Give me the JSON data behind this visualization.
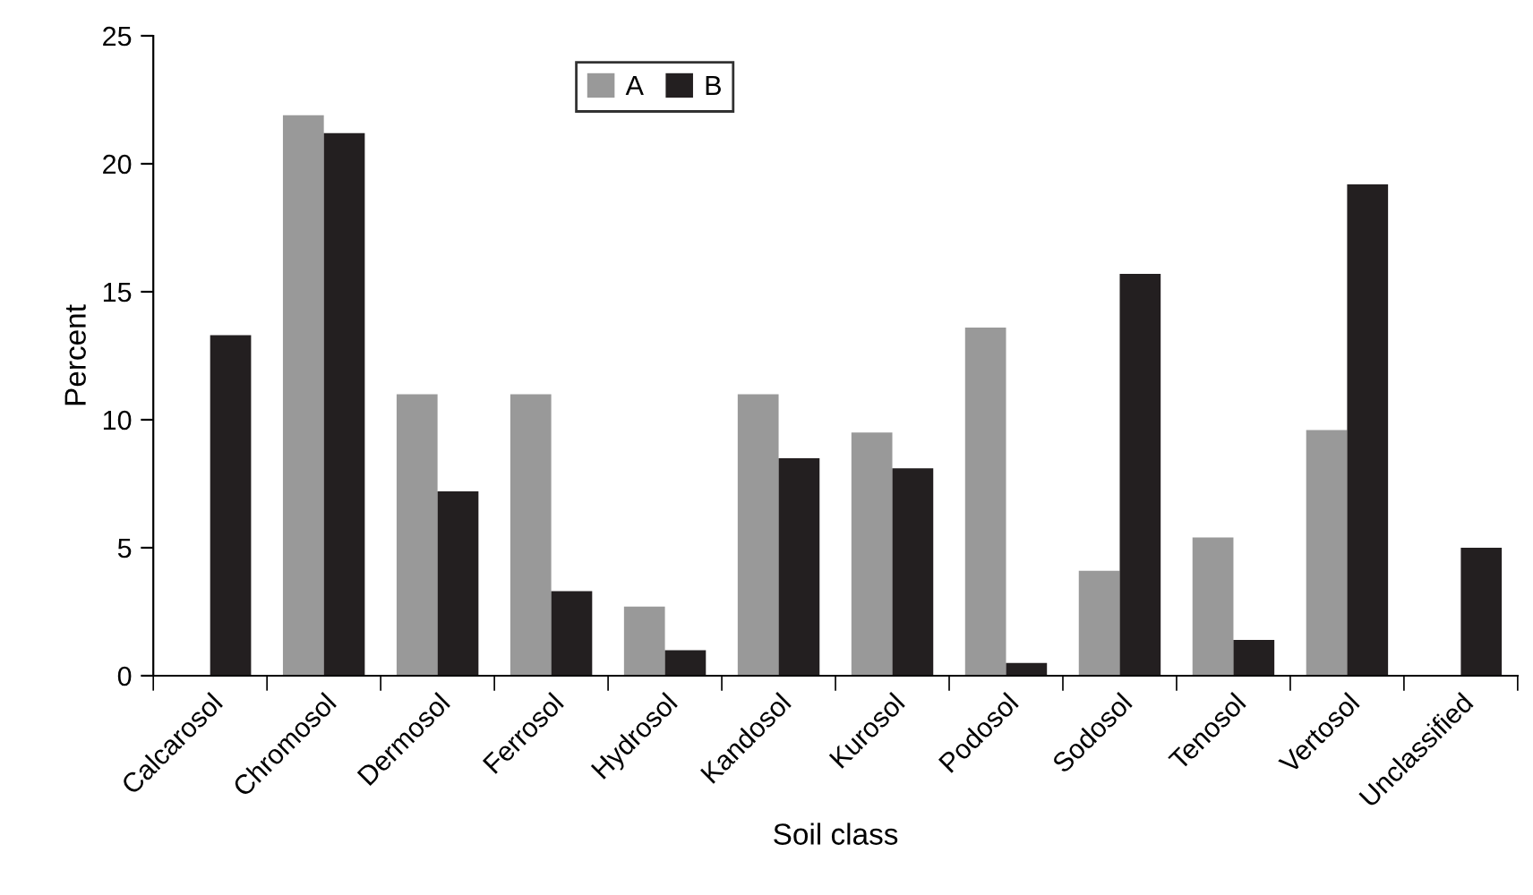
{
  "chart_data": {
    "type": "bar",
    "xlabel": "Soil class",
    "ylabel": "Percent",
    "categories": [
      "Calcarosol",
      "Chromosol",
      "Dermosol",
      "Ferrosol",
      "Hydrosol",
      "Kandosol",
      "Kurosol",
      "Podosol",
      "Sodosol",
      "Tenosol",
      "Vertosol",
      "Unclassified"
    ],
    "series": [
      {
        "name": "A",
        "color": "#999999",
        "values": [
          0,
          21.9,
          11.0,
          11.0,
          2.7,
          11.0,
          9.5,
          13.6,
          4.1,
          5.4,
          9.6,
          0
        ]
      },
      {
        "name": "B",
        "color": "#231f20",
        "values": [
          13.3,
          21.2,
          7.2,
          3.3,
          1.0,
          8.5,
          8.1,
          0.5,
          15.7,
          1.4,
          19.2,
          5.0
        ]
      }
    ],
    "ylim": [
      0,
      25
    ],
    "yticks": [
      0,
      5,
      10,
      15,
      20,
      25
    ],
    "grid": false,
    "legend": "top"
  }
}
